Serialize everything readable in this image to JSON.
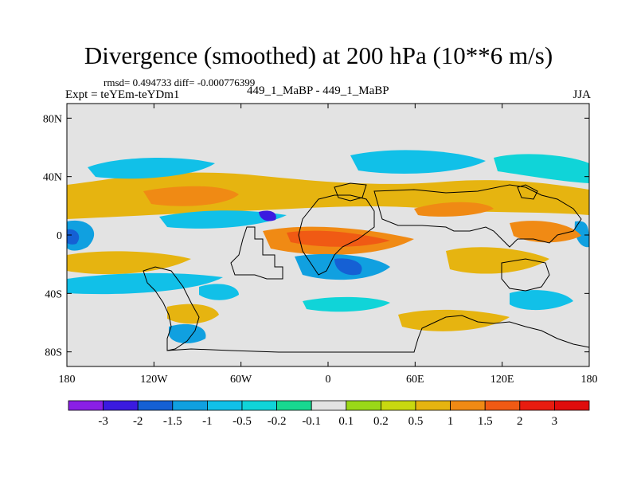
{
  "header": {
    "title": "Divergence (smoothed) at 200 hPa (10**6 m/s)",
    "stats": "rmsd= 0.494733 diff= -0.000776399",
    "expt": "Expt = teYEm-teYDm1",
    "case": "449_1_MaBP - 449_1_MaBP",
    "season": "JJA"
  },
  "chart_data": {
    "type": "heatmap",
    "title": "Divergence (smoothed) at 200 hPa (10**6 m/s)",
    "subtitle": "rmsd= 0.494733 diff= -0.000776399",
    "xlabel": "",
    "ylabel": "",
    "x_range": [
      -180,
      180
    ],
    "y_range": [
      -90,
      90
    ],
    "x_ticks": [
      {
        "value": -180,
        "label": "180"
      },
      {
        "value": -120,
        "label": "120W"
      },
      {
        "value": -60,
        "label": "60W"
      },
      {
        "value": 0,
        "label": "0"
      },
      {
        "value": 60,
        "label": "60E"
      },
      {
        "value": 120,
        "label": "120E"
      },
      {
        "value": 180,
        "label": "180"
      }
    ],
    "y_ticks": [
      {
        "value": 80,
        "label": "80N"
      },
      {
        "value": 40,
        "label": "40N"
      },
      {
        "value": 0,
        "label": "0"
      },
      {
        "value": -40,
        "label": "40S"
      },
      {
        "value": -80,
        "label": "80S"
      }
    ],
    "colorbar": {
      "levels": [
        "-3",
        "-2",
        "-1.5",
        "-1",
        "-0.5",
        "-0.2",
        "-0.1",
        "0.1",
        "0.2",
        "0.5",
        "1",
        "1.5",
        "2",
        "3"
      ],
      "colors": [
        "#8a1fe6",
        "#3a1ae0",
        "#1560d4",
        "#10a0e0",
        "#11c0e8",
        "#10d4d8",
        "#18d890",
        "#e3e3e3",
        "#9ad818",
        "#c8d810",
        "#e6b410",
        "#f08a14",
        "#f05a14",
        "#e81c10",
        "#e00c0c"
      ]
    },
    "features": [
      {
        "lon": -175,
        "lat": 0,
        "value": -2.2
      },
      {
        "lon": -150,
        "lat": 18,
        "value": 0.8
      },
      {
        "lon": -105,
        "lat": 30,
        "value": 1.2
      },
      {
        "lon": -120,
        "lat": 0,
        "value": -1.0
      },
      {
        "lon": -150,
        "lat": -18,
        "value": 0.8
      },
      {
        "lon": -40,
        "lat": 12,
        "value": -2.1
      },
      {
        "lon": -10,
        "lat": -5,
        "value": 2.6
      },
      {
        "lon": 30,
        "lat": -5,
        "value": 2.2
      },
      {
        "lon": 25,
        "lat": -25,
        "value": -1.8
      },
      {
        "lon": 10,
        "lat": 15,
        "value": 1.0
      },
      {
        "lon": 90,
        "lat": 18,
        "value": 1.0
      },
      {
        "lon": 140,
        "lat": 0,
        "value": 1.6
      },
      {
        "lon": 170,
        "lat": 30,
        "value": -1.0
      },
      {
        "lon": -170,
        "lat": 32,
        "value": 0.9
      },
      {
        "lon": 95,
        "lat": -20,
        "value": 1.0
      },
      {
        "lon": -100,
        "lat": -58,
        "value": -1.0
      },
      {
        "lon": -95,
        "lat": -40,
        "value": 1.0
      },
      {
        "lon": 110,
        "lat": -58,
        "value": 0.6
      }
    ],
    "grid": false
  }
}
